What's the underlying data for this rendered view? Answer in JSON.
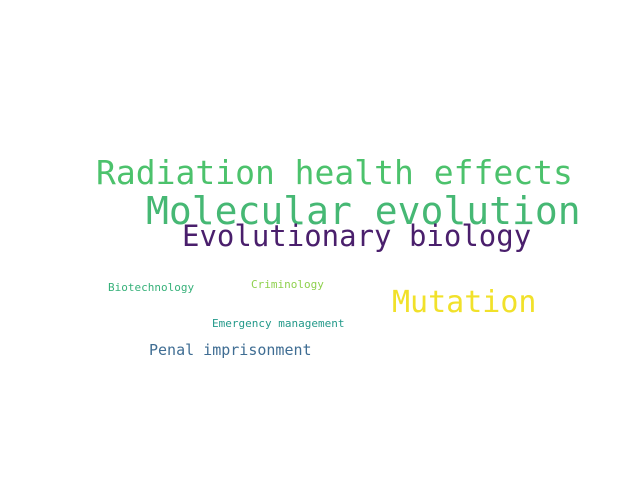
{
  "words": [
    {
      "text": "Radiation health effects",
      "color": "#4cc26c"
    },
    {
      "text": "Molecular evolution",
      "color": "#46b874"
    },
    {
      "text": "Evolutionary biology",
      "color": "#4a1f6c"
    },
    {
      "text": "Mutation",
      "color": "#f1e12a"
    },
    {
      "text": "Biotechnology",
      "color": "#37b17a"
    },
    {
      "text": "Criminology",
      "color": "#8fd14e"
    },
    {
      "text": "Emergency management",
      "color": "#23998a"
    },
    {
      "text": "Penal imprisonment",
      "color": "#3f6d93"
    }
  ]
}
